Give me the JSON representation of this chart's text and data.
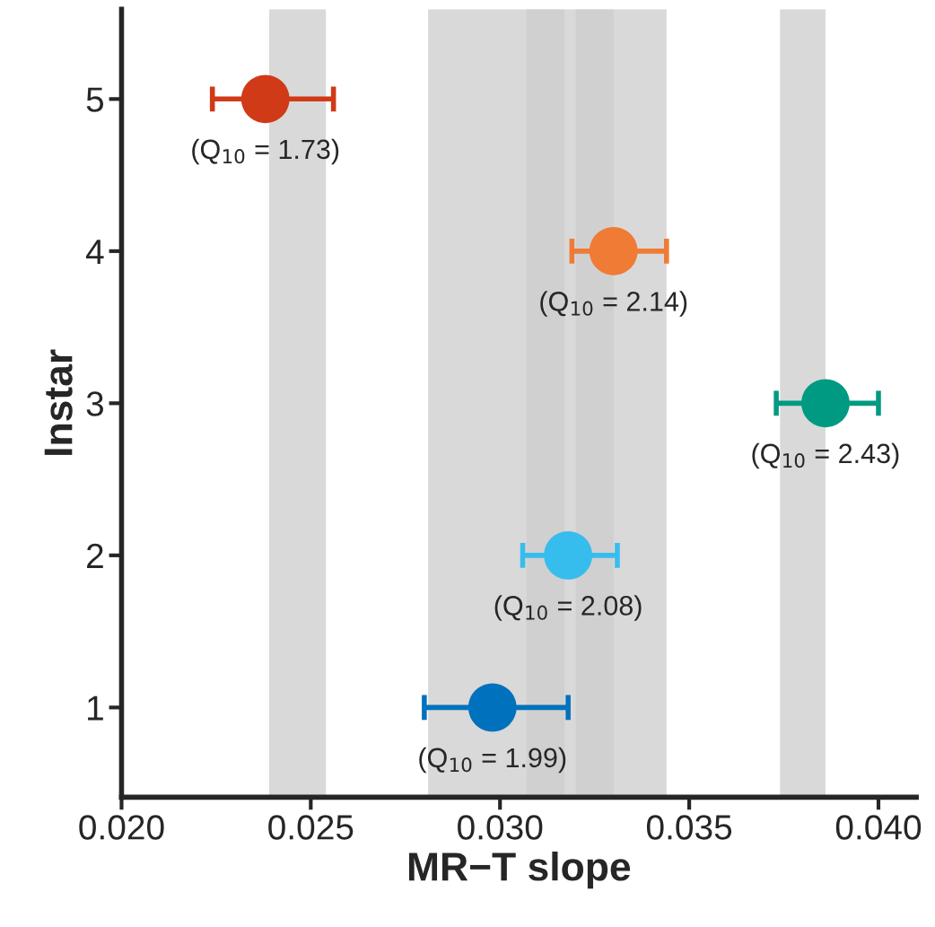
{
  "chart_data": {
    "type": "scatter",
    "xlabel": "MR−T slope",
    "ylabel": "Instar",
    "x": [
      0.0238,
      0.033,
      0.0386,
      0.0318,
      0.0298
    ],
    "values": [
      5,
      4,
      3,
      2,
      1
    ],
    "xerrors": [
      [
        0.0224,
        0.0256
      ],
      [
        0.0319,
        0.0344
      ],
      [
        0.0373,
        0.04
      ],
      [
        0.0306,
        0.0331
      ],
      [
        0.028,
        0.0318
      ]
    ],
    "colors": [
      "#d03a17",
      "#f07b35",
      "#009a82",
      "#36bdee",
      "#0072bd"
    ],
    "marker": "circle",
    "xlim": [
      0.02,
      0.041
    ],
    "xticks": [
      {
        "value": 0.02,
        "label": "0.020"
      },
      {
        "value": 0.025,
        "label": "0.025"
      },
      {
        "value": 0.03,
        "label": "0.030"
      },
      {
        "value": 0.035,
        "label": "0.035"
      },
      {
        "value": 0.04,
        "label": "0.040"
      }
    ],
    "ylim": [
      0.41,
      5.59
    ],
    "yticks": [
      1,
      2,
      3,
      4,
      5
    ],
    "bands": [
      {
        "axis": "x",
        "from": 0.0239,
        "to": 0.0254,
        "color": "#cccccc"
      },
      {
        "axis": "x",
        "from": 0.0374,
        "to": 0.0386,
        "color": "#cccccc"
      },
      {
        "axis": "x",
        "from": 0.032,
        "to": 0.0344,
        "color": "#cccccc"
      },
      {
        "axis": "x",
        "from": 0.0307,
        "to": 0.033,
        "color": "#cccccc"
      },
      {
        "axis": "x",
        "from": 0.0281,
        "to": 0.0317,
        "color": "#cccccc"
      }
    ],
    "annotations": [
      {
        "text": "(Q$_{10}$ = 1.73)",
        "x": 0.0238,
        "y": 5
      },
      {
        "text": "(Q$_{10}$ = 2.14)",
        "x": 0.033,
        "y": 4
      },
      {
        "text": "(Q$_{10}$ = 2.43)",
        "x": 0.0386,
        "y": 3
      },
      {
        "text": "(Q$_{10}$ = 2.08)",
        "x": 0.0318,
        "y": 2
      },
      {
        "text": "(Q$_{10}$ = 1.99)",
        "x": 0.0298,
        "y": 1
      }
    ],
    "grid": false,
    "legend": false
  }
}
